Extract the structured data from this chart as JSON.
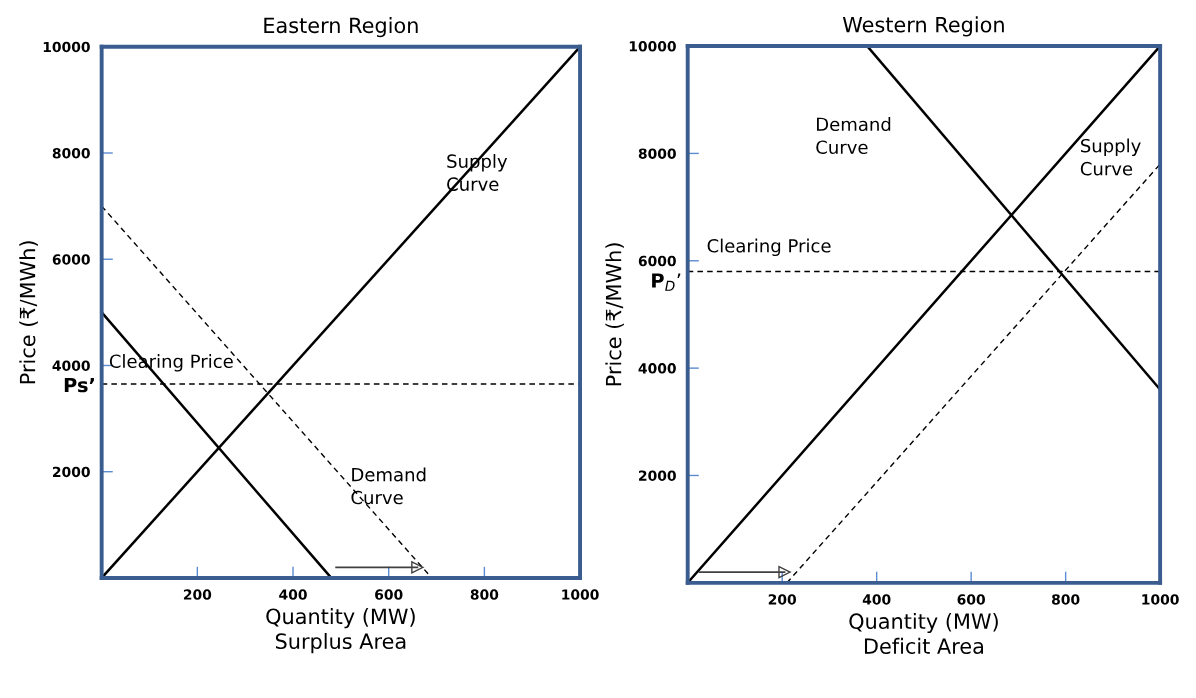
{
  "chart_data": [
    {
      "type": "line",
      "title": "Eastern Region",
      "xlabel": "Quantity (MW)\nSurplus Area",
      "ylabel": "Price (₹/MWh)",
      "xlim": [
        0,
        1000
      ],
      "ylim": [
        0,
        10000
      ],
      "xticks": [
        200,
        400,
        600,
        800,
        1000
      ],
      "yticks": [
        2000,
        4000,
        6000,
        8000,
        10000
      ],
      "grid": false,
      "legend": false,
      "series": [
        {
          "x": [
            0,
            1000
          ],
          "values": [
            0,
            10000
          ],
          "color": "#000000",
          "line_style": "solid"
        },
        {
          "x": [
            0,
            480
          ],
          "values": [
            5000,
            0
          ],
          "color": "#000000",
          "line_style": "solid"
        },
        {
          "x": [
            0,
            690
          ],
          "values": [
            7000,
            0
          ],
          "color": "#000000",
          "line_style": "dashed"
        },
        {
          "x": [
            0,
            1000
          ],
          "values": [
            3650,
            3650
          ],
          "color": "#000000",
          "line_style": "dashed"
        },
        {
          "x": [
            490,
            660
          ],
          "values": [
            200,
            200
          ],
          "color": "#404040",
          "line_style": "solid",
          "marker": "triangle"
        }
      ],
      "annotations": [
        "Supply\nCurve",
        "Demand\nCurve",
        "Clearing Price",
        "Ps’"
      ]
    },
    {
      "type": "line",
      "title": "Western Region",
      "xlabel": "Quantity (MW)\nDeficit Area",
      "ylabel": "Price (₹/MWh)",
      "xlim": [
        0,
        1000
      ],
      "ylim": [
        0,
        10000
      ],
      "xticks": [
        200,
        400,
        600,
        800,
        1000
      ],
      "yticks": [
        2000,
        4000,
        6000,
        8000,
        10000
      ],
      "grid": false,
      "legend": false,
      "series": [
        {
          "x": [
            0,
            1000
          ],
          "values": [
            0,
            10000
          ],
          "color": "#000000",
          "line_style": "solid"
        },
        {
          "x": [
            380,
            1000
          ],
          "values": [
            10000,
            3600
          ],
          "color": "#000000",
          "line_style": "solid"
        },
        {
          "x": [
            210,
            1000
          ],
          "values": [
            0,
            7800
          ],
          "color": "#000000",
          "line_style": "dashed"
        },
        {
          "x": [
            0,
            1000
          ],
          "values": [
            5800,
            5800
          ],
          "color": "#000000",
          "line_style": "dashed"
        },
        {
          "x": [
            25,
            205
          ],
          "values": [
            200,
            200
          ],
          "color": "#404040",
          "line_style": "solid",
          "marker": "triangle"
        }
      ],
      "annotations": [
        "Demand\nCurve",
        "Supply\nCurve",
        "Clearing Price",
        "P$_{D}$’"
      ]
    }
  ]
}
